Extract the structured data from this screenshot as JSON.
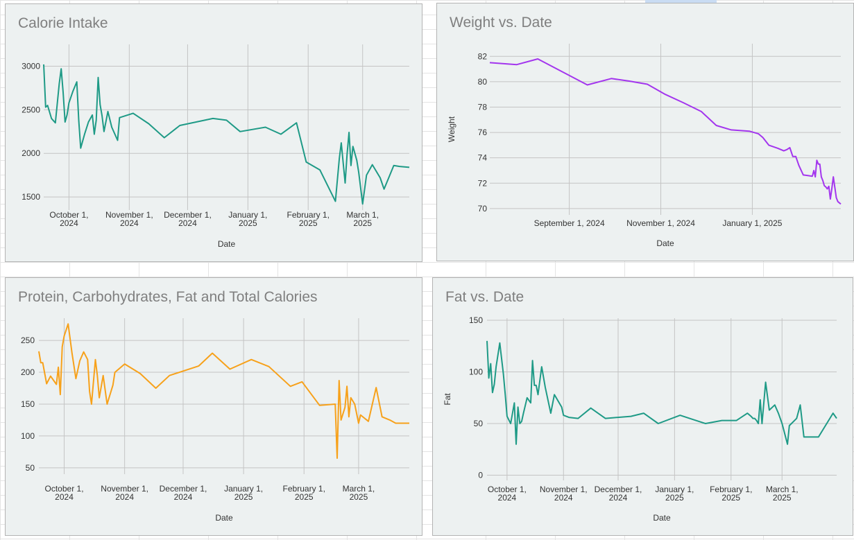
{
  "colors": {
    "teal": "#1e9a86",
    "purple": "#a335ee",
    "orange": "#f7a11a",
    "grid": "#c4c4c4",
    "text": "#333333",
    "title": "#7f7f7f",
    "panel_bg": "#edf1f1"
  },
  "charts": [
    {
      "title": "Calorie Intake",
      "chart_data": {
        "type": "line",
        "xlabel": "Date",
        "ylabel": "",
        "ylim": [
          1350,
          3250
        ],
        "xlim": [
          "2024-09-18",
          "2025-03-25"
        ],
        "grid": true,
        "color": "#1e9a86",
        "yticks": [
          1500,
          2000,
          2500,
          3000
        ],
        "xticks": [
          {
            "date": "2024-10-01",
            "l1": "October 1,",
            "l2": "2024"
          },
          {
            "date": "2024-11-01",
            "l1": "November 1,",
            "l2": "2024"
          },
          {
            "date": "2024-12-01",
            "l1": "December 1,",
            "l2": "2024"
          },
          {
            "date": "2025-01-01",
            "l1": "January 1,",
            "l2": "2025"
          },
          {
            "date": "2025-02-01",
            "l1": "February 1,",
            "l2": "2025"
          },
          {
            "date": "2025-03-01",
            "l1": "March 1,",
            "l2": "2025"
          }
        ],
        "x": [
          "2024-09-18",
          "2024-09-19",
          "2024-09-20",
          "2024-09-22",
          "2024-09-24",
          "2024-09-26",
          "2024-09-27",
          "2024-09-28",
          "2024-09-29",
          "2024-09-30",
          "2024-10-01",
          "2024-10-03",
          "2024-10-05",
          "2024-10-06",
          "2024-10-07",
          "2024-10-09",
          "2024-10-11",
          "2024-10-13",
          "2024-10-14",
          "2024-10-15",
          "2024-10-16",
          "2024-10-17",
          "2024-10-18",
          "2024-10-19",
          "2024-10-21",
          "2024-10-23",
          "2024-10-26",
          "2024-10-27",
          "2024-11-03",
          "2024-11-11",
          "2024-11-19",
          "2024-11-27",
          "2024-12-14",
          "2024-12-21",
          "2024-12-28",
          "2025-01-10",
          "2025-01-18",
          "2025-01-26",
          "2025-01-31",
          "2025-02-07",
          "2025-02-15",
          "2025-02-17",
          "2025-02-18",
          "2025-02-20",
          "2025-02-21",
          "2025-02-22",
          "2025-02-23",
          "2025-02-24",
          "2025-02-25",
          "2025-02-26",
          "2025-02-27",
          "2025-03-01",
          "2025-03-03",
          "2025-03-06",
          "2025-03-10",
          "2025-03-12",
          "2025-03-17",
          "2025-03-20",
          "2025-03-25"
        ],
        "values": [
          3020,
          2530,
          2550,
          2400,
          2350,
          2800,
          2970,
          2700,
          2360,
          2440,
          2580,
          2710,
          2820,
          2380,
          2060,
          2220,
          2360,
          2440,
          2220,
          2380,
          2870,
          2560,
          2430,
          2250,
          2480,
          2300,
          2150,
          2410,
          2460,
          2340,
          2180,
          2320,
          2400,
          2380,
          2250,
          2300,
          2220,
          2350,
          1900,
          1810,
          1450,
          1940,
          2120,
          1660,
          1990,
          2240,
          1860,
          2080,
          2000,
          1920,
          1780,
          1420,
          1750,
          1870,
          1720,
          1590,
          1860,
          1850,
          1840
        ]
      }
    },
    {
      "title": "Weight vs. Date",
      "chart_data": {
        "type": "line",
        "xlabel": "Date",
        "ylabel": "Weight",
        "ylim": [
          69.5,
          83
        ],
        "xlim": [
          "2024-07-10",
          "2025-03-01"
        ],
        "grid": true,
        "color": "#a335ee",
        "yticks": [
          70,
          72,
          74,
          76,
          78,
          80,
          82
        ],
        "xticks": [
          {
            "date": "2024-09-01",
            "l1": "September 1, 2024",
            "l2": ""
          },
          {
            "date": "2024-11-01",
            "l1": "November 1, 2024",
            "l2": ""
          },
          {
            "date": "2025-01-01",
            "l1": "January 1, 2025",
            "l2": ""
          }
        ],
        "x": [
          "2024-07-10",
          "2024-07-28",
          "2024-08-11",
          "2024-09-13",
          "2024-09-29",
          "2024-10-11",
          "2024-10-23",
          "2024-11-04",
          "2024-11-16",
          "2024-11-28",
          "2024-12-08",
          "2024-12-18",
          "2024-12-30",
          "2025-01-05",
          "2025-01-08",
          "2025-01-12",
          "2025-01-18",
          "2025-01-22",
          "2025-01-24",
          "2025-01-26",
          "2025-01-28",
          "2025-01-30",
          "2025-02-01",
          "2025-02-04",
          "2025-02-07",
          "2025-02-10",
          "2025-02-11",
          "2025-02-12",
          "2025-02-13",
          "2025-02-14",
          "2025-02-15",
          "2025-02-16",
          "2025-02-17",
          "2025-02-18",
          "2025-02-19",
          "2025-02-20",
          "2025-02-21",
          "2025-02-22",
          "2025-02-23",
          "2025-02-24",
          "2025-02-26",
          "2025-02-27",
          "2025-03-01"
        ],
        "values": [
          81.5,
          81.35,
          81.8,
          79.75,
          80.25,
          80.05,
          79.8,
          79.0,
          78.35,
          77.65,
          76.55,
          76.2,
          76.1,
          75.9,
          75.6,
          75.0,
          74.75,
          74.55,
          74.65,
          74.8,
          74.1,
          74.1,
          73.4,
          72.65,
          72.6,
          72.55,
          73.0,
          72.5,
          73.8,
          73.5,
          73.5,
          72.5,
          72.2,
          71.8,
          71.7,
          71.55,
          71.75,
          70.75,
          71.55,
          72.5,
          70.85,
          70.55,
          70.35
        ]
      }
    },
    {
      "title": "Protein, Carbohydrates, Fat and Total Calories",
      "chart_data": {
        "type": "line",
        "xlabel": "Date",
        "ylabel": "",
        "ylim": [
          40,
          285
        ],
        "xlim": [
          "2024-09-18",
          "2025-03-27"
        ],
        "grid": true,
        "color": "#f7a11a",
        "yticks": [
          50,
          100,
          150,
          200,
          250
        ],
        "xticks": [
          {
            "date": "2024-10-01",
            "l1": "October 1,",
            "l2": "2024"
          },
          {
            "date": "2024-11-01",
            "l1": "November 1,",
            "l2": "2024"
          },
          {
            "date": "2024-12-01",
            "l1": "December 1,",
            "l2": "2024"
          },
          {
            "date": "2025-01-01",
            "l1": "January 1,",
            "l2": "2025"
          },
          {
            "date": "2025-02-01",
            "l1": "February 1,",
            "l2": "2025"
          },
          {
            "date": "2025-03-01",
            "l1": "March 1,",
            "l2": "2025"
          }
        ],
        "x": [
          "2024-09-18",
          "2024-09-19",
          "2024-09-20",
          "2024-09-22",
          "2024-09-24",
          "2024-09-27",
          "2024-09-28",
          "2024-09-29",
          "2024-09-30",
          "2024-10-01",
          "2024-10-03",
          "2024-10-05",
          "2024-10-07",
          "2024-10-09",
          "2024-10-11",
          "2024-10-13",
          "2024-10-14",
          "2024-10-15",
          "2024-10-17",
          "2024-10-18",
          "2024-10-19",
          "2024-10-21",
          "2024-10-23",
          "2024-10-26",
          "2024-10-27",
          "2024-11-01",
          "2024-11-09",
          "2024-11-17",
          "2024-11-24",
          "2024-12-09",
          "2024-12-16",
          "2024-12-25",
          "2025-01-05",
          "2025-01-14",
          "2025-01-25",
          "2025-01-31",
          "2025-02-09",
          "2025-02-17",
          "2025-02-18",
          "2025-02-19",
          "2025-02-20",
          "2025-02-22",
          "2025-02-23",
          "2025-02-24",
          "2025-02-25",
          "2025-02-26",
          "2025-02-27",
          "2025-03-01",
          "2025-03-02",
          "2025-03-06",
          "2025-03-10",
          "2025-03-13",
          "2025-03-17",
          "2025-03-20",
          "2025-03-27"
        ],
        "values": [
          233,
          215,
          215,
          182,
          194,
          181,
          208,
          165,
          240,
          257,
          276,
          230,
          190,
          218,
          232,
          220,
          170,
          150,
          220,
          195,
          160,
          195,
          150,
          180,
          200,
          213,
          198,
          175,
          195,
          210,
          230,
          205,
          220,
          209,
          178,
          185,
          148,
          150,
          65,
          187,
          125,
          145,
          178,
          130,
          160,
          155,
          150,
          120,
          133,
          123,
          176,
          130,
          125,
          120,
          120
        ]
      }
    },
    {
      "title": "Fat vs. Date",
      "chart_data": {
        "type": "line",
        "xlabel": "Date",
        "ylabel": "Fat",
        "ylim": [
          -5,
          152
        ],
        "xlim": [
          "2024-09-20",
          "2025-03-31"
        ],
        "grid": true,
        "color": "#1e9a86",
        "yticks": [
          0,
          50,
          100,
          150
        ],
        "xticks": [
          {
            "date": "2024-10-01",
            "l1": "October 1,",
            "l2": "2024"
          },
          {
            "date": "2024-11-01",
            "l1": "November 1,",
            "l2": "2024"
          },
          {
            "date": "2024-12-01",
            "l1": "December 1,",
            "l2": "2024"
          },
          {
            "date": "2025-01-01",
            "l1": "January 1,",
            "l2": "2025"
          },
          {
            "date": "2025-02-01",
            "l1": "February 1,",
            "l2": "2025"
          },
          {
            "date": "2025-03-01",
            "l1": "March 1,",
            "l2": "2025"
          }
        ],
        "x": [
          "2024-09-20",
          "2024-09-21",
          "2024-09-22",
          "2024-09-23",
          "2024-09-24",
          "2024-09-25",
          "2024-09-27",
          "2024-09-29",
          "2024-09-30",
          "2024-10-01",
          "2024-10-03",
          "2024-10-05",
          "2024-10-06",
          "2024-10-07",
          "2024-10-08",
          "2024-10-09",
          "2024-10-10",
          "2024-10-12",
          "2024-10-14",
          "2024-10-15",
          "2024-10-16",
          "2024-10-17",
          "2024-10-18",
          "2024-10-20",
          "2024-10-22",
          "2024-10-25",
          "2024-10-27",
          "2024-10-31",
          "2024-11-01",
          "2024-11-04",
          "2024-11-09",
          "2024-11-16",
          "2024-11-24",
          "2024-12-08",
          "2024-12-15",
          "2024-12-23",
          "2025-01-04",
          "2025-01-11",
          "2025-01-18",
          "2025-01-27",
          "2025-02-04",
          "2025-02-10",
          "2025-02-12",
          "2025-02-13",
          "2025-02-14",
          "2025-02-15",
          "2025-02-16",
          "2025-02-17",
          "2025-02-18",
          "2025-02-20",
          "2025-02-22",
          "2025-02-25",
          "2025-02-27",
          "2025-03-01",
          "2025-03-04",
          "2025-03-05",
          "2025-03-09",
          "2025-03-11",
          "2025-03-13",
          "2025-03-21",
          "2025-03-29",
          "2025-03-31"
        ],
        "values": [
          130,
          94,
          108,
          80,
          88,
          105,
          128,
          98,
          78,
          57,
          50,
          70,
          30,
          66,
          50,
          52,
          60,
          75,
          70,
          111,
          87,
          87,
          78,
          105,
          85,
          60,
          78,
          66,
          58,
          56,
          55,
          65,
          55,
          57,
          60,
          50,
          58,
          54,
          50,
          53,
          53,
          60,
          57,
          55,
          55,
          53,
          50,
          73,
          50,
          90,
          63,
          68,
          60,
          50,
          30,
          48,
          55,
          68,
          37,
          37,
          60,
          55
        ]
      }
    }
  ]
}
